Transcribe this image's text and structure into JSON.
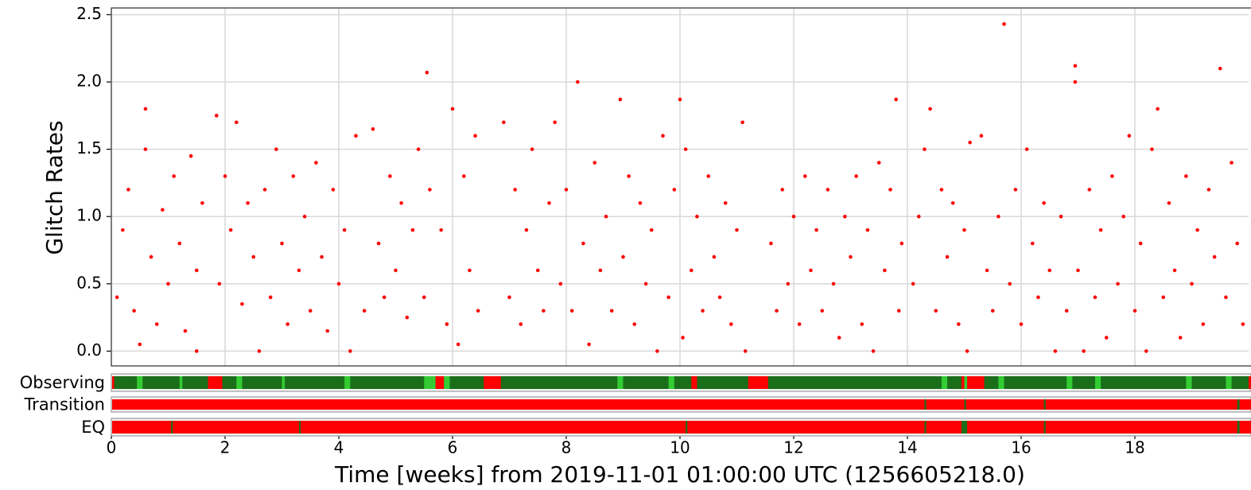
{
  "chart_data": {
    "type": "scatter",
    "xlabel": "Time [weeks] from 2019-11-01 01:00:00 UTC (1256605218.0)",
    "ylabel": "Glitch Rates",
    "color": "#ff0000",
    "grid": true,
    "xlim": [
      0,
      20
    ],
    "ylim": [
      -0.11,
      2.55
    ],
    "xticks": [
      0,
      2,
      4,
      6,
      8,
      10,
      12,
      14,
      16,
      18
    ],
    "yticks": [
      {
        "value": 0,
        "label": "0.0"
      },
      0.5,
      {
        "value": 1,
        "label": "1.0"
      },
      1.5,
      {
        "value": 2,
        "label": "2.0"
      },
      2.5
    ],
    "x": [
      0.1,
      0.2,
      0.3,
      0.4,
      0.5,
      0.6,
      0.6,
      0.7,
      0.8,
      0.9,
      1.0,
      1.1,
      1.2,
      1.3,
      1.4,
      1.5,
      1.5,
      1.6,
      1.85,
      1.9,
      2.0,
      2.1,
      2.2,
      2.3,
      2.4,
      2.5,
      2.6,
      2.7,
      2.8,
      2.9,
      3.0,
      3.1,
      3.2,
      3.3,
      3.4,
      3.5,
      3.6,
      3.7,
      3.8,
      3.9,
      4.0,
      4.1,
      4.2,
      4.3,
      4.45,
      4.6,
      4.7,
      4.8,
      4.9,
      5.0,
      5.1,
      5.2,
      5.3,
      5.4,
      5.5,
      5.55,
      5.6,
      5.8,
      5.9,
      6.0,
      6.1,
      6.2,
      6.3,
      6.4,
      6.45,
      6.9,
      7.0,
      7.1,
      7.2,
      7.3,
      7.4,
      7.5,
      7.6,
      7.7,
      7.8,
      7.9,
      8.0,
      8.1,
      8.2,
      8.3,
      8.4,
      8.5,
      8.6,
      8.7,
      8.8,
      8.95,
      9.0,
      9.1,
      9.2,
      9.3,
      9.4,
      9.5,
      9.6,
      9.7,
      9.8,
      9.9,
      10.0,
      10.05,
      10.1,
      10.2,
      10.3,
      10.4,
      10.5,
      10.6,
      10.7,
      10.8,
      10.9,
      11.0,
      11.1,
      11.15,
      11.6,
      11.7,
      11.8,
      11.9,
      12.0,
      12.1,
      12.2,
      12.3,
      12.4,
      12.5,
      12.6,
      12.7,
      12.8,
      12.9,
      13.0,
      13.1,
      13.2,
      13.3,
      13.4,
      13.5,
      13.6,
      13.7,
      13.8,
      13.85,
      13.9,
      14.1,
      14.2,
      14.3,
      14.4,
      14.5,
      14.6,
      14.7,
      14.8,
      14.9,
      15.0,
      15.05,
      15.1,
      15.3,
      15.4,
      15.5,
      15.6,
      15.7,
      15.8,
      15.9,
      16.0,
      16.1,
      16.2,
      16.3,
      16.4,
      16.5,
      16.6,
      16.7,
      16.8,
      16.95,
      16.95,
      17.0,
      17.1,
      17.2,
      17.3,
      17.4,
      17.5,
      17.6,
      17.7,
      17.8,
      17.9,
      18.0,
      18.1,
      18.2,
      18.3,
      18.4,
      18.5,
      18.6,
      18.7,
      18.8,
      18.9,
      19.0,
      19.1,
      19.2,
      19.3,
      19.4,
      19.5,
      19.6,
      19.7,
      19.8,
      19.9
    ],
    "y": [
      0.4,
      0.9,
      1.2,
      0.3,
      0.05,
      1.8,
      1.5,
      0.7,
      0.2,
      1.05,
      0.5,
      1.3,
      0.8,
      0.15,
      1.45,
      0.6,
      0.0,
      1.1,
      1.75,
      0.5,
      1.3,
      0.9,
      1.7,
      0.35,
      1.1,
      0.7,
      0.0,
      1.2,
      0.4,
      1.5,
      0.8,
      0.2,
      1.3,
      0.6,
      1.0,
      0.3,
      1.4,
      0.7,
      0.15,
      1.2,
      0.5,
      0.9,
      0.0,
      1.6,
      0.3,
      1.65,
      0.8,
      0.4,
      1.3,
      0.6,
      1.1,
      0.25,
      0.9,
      1.5,
      0.4,
      2.07,
      1.2,
      0.9,
      0.2,
      1.8,
      0.05,
      1.3,
      0.6,
      1.6,
      0.3,
      1.7,
      0.4,
      1.2,
      0.2,
      0.9,
      1.5,
      0.6,
      0.3,
      1.1,
      1.7,
      0.5,
      1.2,
      0.3,
      2.0,
      0.8,
      0.05,
      1.4,
      0.6,
      1.0,
      0.3,
      1.87,
      0.7,
      1.3,
      0.2,
      1.1,
      0.5,
      0.9,
      0.0,
      1.6,
      0.4,
      1.2,
      1.87,
      0.1,
      1.5,
      0.6,
      1.0,
      0.3,
      1.3,
      0.7,
      0.4,
      1.1,
      0.2,
      0.9,
      1.7,
      0.0,
      0.8,
      0.3,
      1.2,
      0.5,
      1.0,
      0.2,
      1.3,
      0.6,
      0.9,
      0.3,
      1.2,
      0.5,
      0.1,
      1.0,
      0.7,
      1.3,
      0.2,
      0.9,
      0.0,
      1.4,
      0.6,
      1.2,
      1.87,
      0.3,
      0.8,
      0.5,
      1.0,
      1.5,
      1.8,
      0.3,
      1.2,
      0.7,
      1.1,
      0.2,
      0.9,
      0.0,
      1.55,
      1.6,
      0.6,
      0.3,
      1.0,
      2.43,
      0.5,
      1.2,
      0.2,
      1.5,
      0.8,
      0.4,
      1.1,
      0.6,
      0.0,
      1.0,
      0.3,
      2.12,
      2.0,
      0.6,
      0.0,
      1.2,
      0.4,
      0.9,
      0.1,
      1.3,
      0.5,
      1.0,
      1.6,
      0.3,
      0.8,
      0.0,
      1.5,
      1.8,
      0.4,
      1.1,
      0.6,
      0.1,
      1.3,
      0.5,
      0.9,
      0.2,
      1.2,
      0.7,
      2.1,
      0.4,
      1.4,
      0.8,
      0.2
    ],
    "state_rows": [
      {
        "label": "Observing",
        "base_color": "#ff0000",
        "color": "#1a6e1a",
        "flag_color": "#33cc33",
        "intervals": [
          [
            0.05,
            1.7
          ],
          [
            1.95,
            5.7
          ],
          [
            5.85,
            6.55
          ],
          [
            6.85,
            10.2
          ],
          [
            10.3,
            11.2
          ],
          [
            11.55,
            14.95
          ],
          [
            15.0,
            15.05
          ],
          [
            15.35,
            20
          ]
        ],
        "flagged": [
          [
            0.45,
            0.55
          ],
          [
            1.2,
            1.25
          ],
          [
            2.2,
            2.3
          ],
          [
            3.0,
            3.05
          ],
          [
            4.1,
            4.2
          ],
          [
            5.5,
            5.7
          ],
          [
            5.85,
            5.95
          ],
          [
            8.9,
            9.0
          ],
          [
            9.8,
            9.9
          ],
          [
            14.6,
            14.7
          ],
          [
            15.0,
            15.05
          ],
          [
            15.6,
            15.7
          ],
          [
            16.8,
            16.9
          ],
          [
            17.3,
            17.4
          ],
          [
            18.9,
            19.0
          ],
          [
            19.6,
            19.7
          ]
        ]
      },
      {
        "label": "Transition",
        "base_color": "#ff0000",
        "color": "#1a6e1a",
        "intervals": [
          [
            14.3,
            14.33
          ],
          [
            15.0,
            15.03
          ],
          [
            16.4,
            16.43
          ],
          [
            19.8,
            19.84
          ]
        ]
      },
      {
        "label": "EQ",
        "base_color": "#ff0000",
        "color": "#1a6e1a",
        "intervals": [
          [
            1.05,
            1.08
          ],
          [
            3.3,
            3.33
          ],
          [
            10.1,
            10.13
          ],
          [
            14.3,
            14.33
          ],
          [
            14.95,
            15.05
          ],
          [
            16.4,
            16.43
          ],
          [
            19.8,
            19.84
          ]
        ]
      }
    ]
  }
}
